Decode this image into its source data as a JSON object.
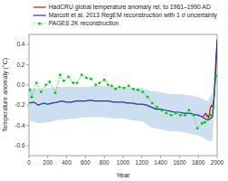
{
  "chart_data": {
    "type": "line",
    "xlabel": "Year",
    "ylabel": "Temperature anomaly (°C)",
    "xlim": [
      0,
      2000
    ],
    "ylim": [
      -0.7,
      0.5
    ],
    "xticks": [
      0,
      200,
      400,
      600,
      800,
      1000,
      1200,
      1400,
      1600,
      1800,
      2000
    ],
    "yticks": [
      -0.6,
      -0.4,
      -0.2,
      {
        "value": 0.0,
        "label": "0.0"
      },
      0.2,
      0.4
    ],
    "legend": "upper right",
    "series": [
      {
        "name": "HadCRU global temperature anomaly rel. to 1961–1990 AD",
        "type": "line",
        "color": "#cc1111",
        "line_style": "solid",
        "x": [
          1850,
          1860,
          1870,
          1880,
          1890,
          1900,
          1910,
          1920,
          1930,
          1940,
          1950,
          1960,
          1970,
          1980,
          1990,
          2000
        ],
        "values": [
          -0.32,
          -0.3,
          -0.29,
          -0.28,
          -0.31,
          -0.3,
          -0.33,
          -0.27,
          -0.22,
          -0.2,
          -0.22,
          -0.18,
          -0.1,
          0.05,
          0.22,
          0.42
        ]
      },
      {
        "name": "Marcott et al. 2013 RegEM reconstruction with 1 σ uncertainty",
        "type": "line",
        "color": "#1a3a99",
        "line_style": "solid",
        "x": [
          0,
          50,
          100,
          150,
          200,
          250,
          300,
          350,
          400,
          450,
          500,
          550,
          600,
          650,
          700,
          750,
          800,
          850,
          900,
          950,
          1000,
          1050,
          1100,
          1150,
          1200,
          1250,
          1300,
          1350,
          1400,
          1450,
          1500,
          1550,
          1600,
          1650,
          1700,
          1750,
          1800,
          1850,
          1900,
          1950,
          1970,
          1980,
          1990,
          2000
        ],
        "values": [
          -0.18,
          -0.17,
          -0.2,
          -0.18,
          -0.19,
          -0.18,
          -0.17,
          -0.16,
          -0.17,
          -0.17,
          -0.16,
          -0.16,
          -0.16,
          -0.15,
          -0.16,
          -0.16,
          -0.16,
          -0.16,
          -0.17,
          -0.17,
          -0.17,
          -0.18,
          -0.18,
          -0.19,
          -0.19,
          -0.2,
          -0.22,
          -0.24,
          -0.24,
          -0.25,
          -0.26,
          -0.27,
          -0.27,
          -0.28,
          -0.28,
          -0.29,
          -0.3,
          -0.32,
          -0.35,
          -0.32,
          -0.1,
          0.1,
          0.3,
          0.45
        ]
      },
      {
        "type": "area",
        "color": "#c5d8ee",
        "x": [
          0,
          100,
          200,
          300,
          400,
          500,
          600,
          700,
          800,
          900,
          1000,
          1100,
          1200,
          1300,
          1400,
          1500,
          1600,
          1700,
          1800,
          1850,
          1900,
          1950,
          2000
        ],
        "upper": [
          -0.03,
          -0.04,
          -0.03,
          -0.02,
          -0.02,
          -0.02,
          -0.02,
          -0.01,
          -0.01,
          -0.02,
          -0.02,
          -0.03,
          -0.03,
          -0.06,
          -0.07,
          -0.09,
          -0.09,
          -0.1,
          -0.12,
          -0.14,
          -0.16,
          -0.08,
          0.46
        ],
        "lower": [
          -0.35,
          -0.38,
          -0.37,
          -0.35,
          -0.34,
          -0.33,
          -0.32,
          -0.32,
          -0.32,
          -0.33,
          -0.33,
          -0.35,
          -0.36,
          -0.42,
          -0.44,
          -0.46,
          -0.46,
          -0.48,
          -0.5,
          -0.52,
          -0.55,
          -0.56,
          0.46
        ]
      },
      {
        "name": "PAGES 2K reconstruction",
        "type": "line",
        "color": "#00cc00",
        "line_style": "dotted",
        "marker": "circle",
        "x": [
          10,
          30,
          80,
          130,
          180,
          220,
          280,
          330,
          370,
          420,
          470,
          510,
          560,
          610,
          660,
          710,
          750,
          800,
          840,
          880,
          920,
          960,
          1010,
          1060,
          1110,
          1160,
          1210,
          1260,
          1310,
          1360,
          1410,
          1460,
          1510,
          1560,
          1610,
          1660,
          1700,
          1750,
          1790,
          1840,
          1870,
          1900,
          1930,
          1960,
          1990
        ],
        "values": [
          -0.05,
          -0.12,
          0.02,
          -0.07,
          0.0,
          0.03,
          -0.08,
          0.1,
          0.04,
          0.08,
          0.02,
          0.02,
          0.1,
          0.07,
          0.06,
          0.0,
          0.02,
          0.05,
          0.0,
          -0.01,
          -0.04,
          -0.02,
          -0.03,
          -0.01,
          -0.04,
          -0.05,
          -0.07,
          -0.12,
          -0.18,
          -0.22,
          -0.25,
          -0.28,
          -0.3,
          -0.28,
          -0.3,
          -0.3,
          -0.25,
          -0.3,
          -0.43,
          -0.38,
          -0.37,
          -0.34,
          -0.3,
          -0.22,
          0.09
        ]
      }
    ]
  }
}
